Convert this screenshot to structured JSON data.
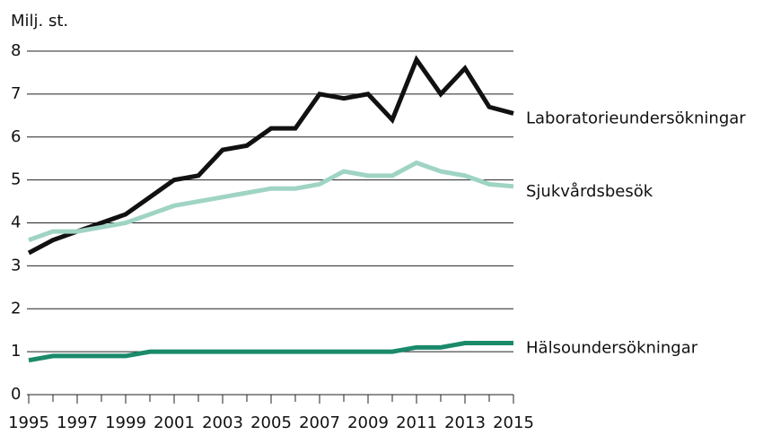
{
  "chart_data": {
    "type": "line",
    "y_label": "Milj. st.",
    "x": [
      1995,
      1996,
      1997,
      1998,
      1999,
      2000,
      2001,
      2002,
      2003,
      2004,
      2005,
      2006,
      2007,
      2008,
      2009,
      2010,
      2011,
      2012,
      2013,
      2014,
      2015
    ],
    "series": [
      {
        "name": "Laboratorieundersökningar",
        "color": "#111111",
        "values": [
          3.3,
          3.6,
          3.8,
          4.0,
          4.2,
          4.6,
          5.0,
          5.1,
          5.7,
          5.8,
          6.2,
          6.2,
          7.0,
          6.9,
          7.0,
          6.4,
          7.8,
          7.0,
          7.6,
          6.7,
          6.55
        ]
      },
      {
        "name": "Sjukvårdsbesök",
        "color": "#9fd4c4",
        "values": [
          3.6,
          3.8,
          3.8,
          3.9,
          4.0,
          4.2,
          4.4,
          4.5,
          4.6,
          4.7,
          4.8,
          4.8,
          4.9,
          5.2,
          5.1,
          5.1,
          5.4,
          5.2,
          5.1,
          4.9,
          4.85
        ]
      },
      {
        "name": "Hälsoundersökningar",
        "color": "#1a8a6a",
        "values": [
          0.8,
          0.9,
          0.9,
          0.9,
          0.9,
          1.0,
          1.0,
          1.0,
          1.0,
          1.0,
          1.0,
          1.0,
          1.0,
          1.0,
          1.0,
          1.0,
          1.1,
          1.1,
          1.2,
          1.2,
          1.2
        ]
      }
    ],
    "xlim": [
      1995,
      2015
    ],
    "xticks": [
      1995,
      1997,
      1999,
      2001,
      2003,
      2005,
      2007,
      2009,
      2011,
      2013,
      2015
    ],
    "ylim": [
      0,
      8
    ],
    "yticks": [
      0,
      1,
      2,
      3,
      4,
      5,
      6,
      7,
      8
    ],
    "grid": true
  }
}
